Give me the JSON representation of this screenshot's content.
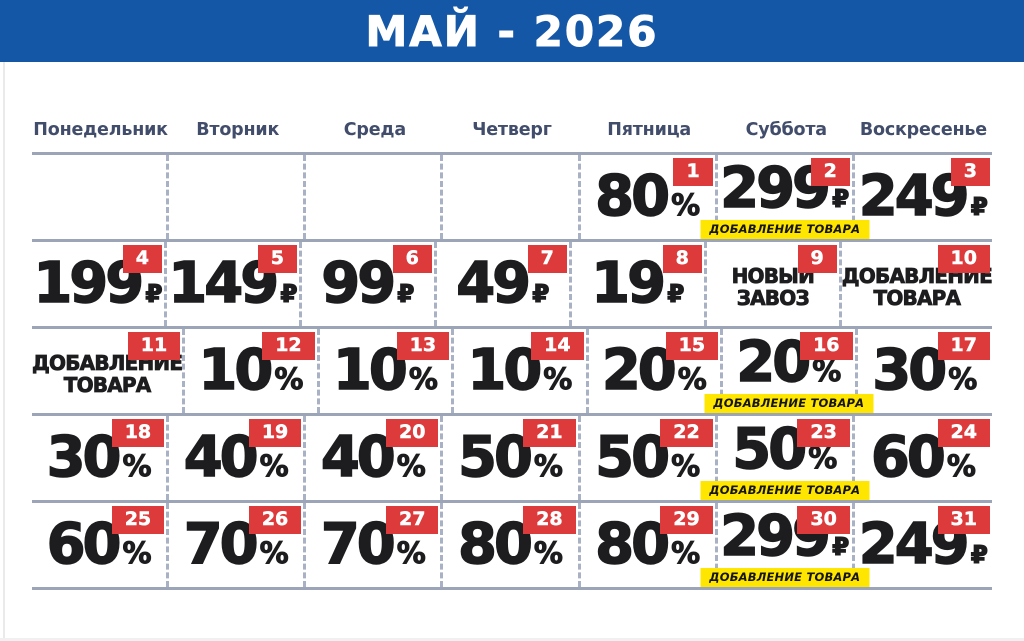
{
  "header": {
    "title": "МАЙ - 2026"
  },
  "weekdays": [
    "Понедельник",
    "Вторник",
    "Среда",
    "Четверг",
    "Пятница",
    "Суббота",
    "Воскресенье"
  ],
  "colors": {
    "header_blue": "#1457A7",
    "day_name": "#414D6B",
    "row_line": "#9CA4B7",
    "column_dash": "#A9B1C4",
    "badge_red": "#DC3A3B",
    "banner_yellow": "#FFE600",
    "value_ink": "#1D1D1F",
    "page_bg": "#FFFFFF"
  },
  "calendar": {
    "banner_label": "ДОБАВЛЕНИЕ ТОВАРА",
    "weeks": [
      [
        null,
        null,
        null,
        null,
        {
          "day": "1",
          "value": "80",
          "unit": "%"
        },
        {
          "day": "2",
          "value": "299",
          "unit": "₽",
          "banner": true
        },
        {
          "day": "3",
          "value": "249",
          "unit": "₽"
        }
      ],
      [
        {
          "day": "4",
          "value": "199",
          "unit": "₽"
        },
        {
          "day": "5",
          "value": "149",
          "unit": "₽"
        },
        {
          "day": "6",
          "value": "99",
          "unit": "₽"
        },
        {
          "day": "7",
          "value": "49",
          "unit": "₽"
        },
        {
          "day": "8",
          "value": "19",
          "unit": "₽"
        },
        {
          "day": "9",
          "lines": [
            "НОВЫЙ",
            "ЗАВОЗ"
          ]
        },
        {
          "day": "10",
          "lines": [
            "ДОБАВЛЕНИЕ",
            "ТОВАРА"
          ]
        }
      ],
      [
        {
          "day": "11",
          "lines": [
            "ДОБАВЛЕНИЕ",
            "ТОВАРА"
          ]
        },
        {
          "day": "12",
          "value": "10",
          "unit": "%"
        },
        {
          "day": "13",
          "value": "10",
          "unit": "%"
        },
        {
          "day": "14",
          "value": "10",
          "unit": "%"
        },
        {
          "day": "15",
          "value": "20",
          "unit": "%"
        },
        {
          "day": "16",
          "value": "20",
          "unit": "%",
          "banner": true
        },
        {
          "day": "17",
          "value": "30",
          "unit": "%"
        }
      ],
      [
        {
          "day": "18",
          "value": "30",
          "unit": "%"
        },
        {
          "day": "19",
          "value": "40",
          "unit": "%"
        },
        {
          "day": "20",
          "value": "40",
          "unit": "%"
        },
        {
          "day": "21",
          "value": "50",
          "unit": "%"
        },
        {
          "day": "22",
          "value": "50",
          "unit": "%"
        },
        {
          "day": "23",
          "value": "50",
          "unit": "%",
          "banner": true
        },
        {
          "day": "24",
          "value": "60",
          "unit": "%"
        }
      ],
      [
        {
          "day": "25",
          "value": "60",
          "unit": "%"
        },
        {
          "day": "26",
          "value": "70",
          "unit": "%"
        },
        {
          "day": "27",
          "value": "70",
          "unit": "%"
        },
        {
          "day": "28",
          "value": "80",
          "unit": "%"
        },
        {
          "day": "29",
          "value": "80",
          "unit": "%"
        },
        {
          "day": "30",
          "value": "299",
          "unit": "₽",
          "banner": true
        },
        {
          "day": "31",
          "value": "249",
          "unit": "₽"
        }
      ]
    ]
  }
}
